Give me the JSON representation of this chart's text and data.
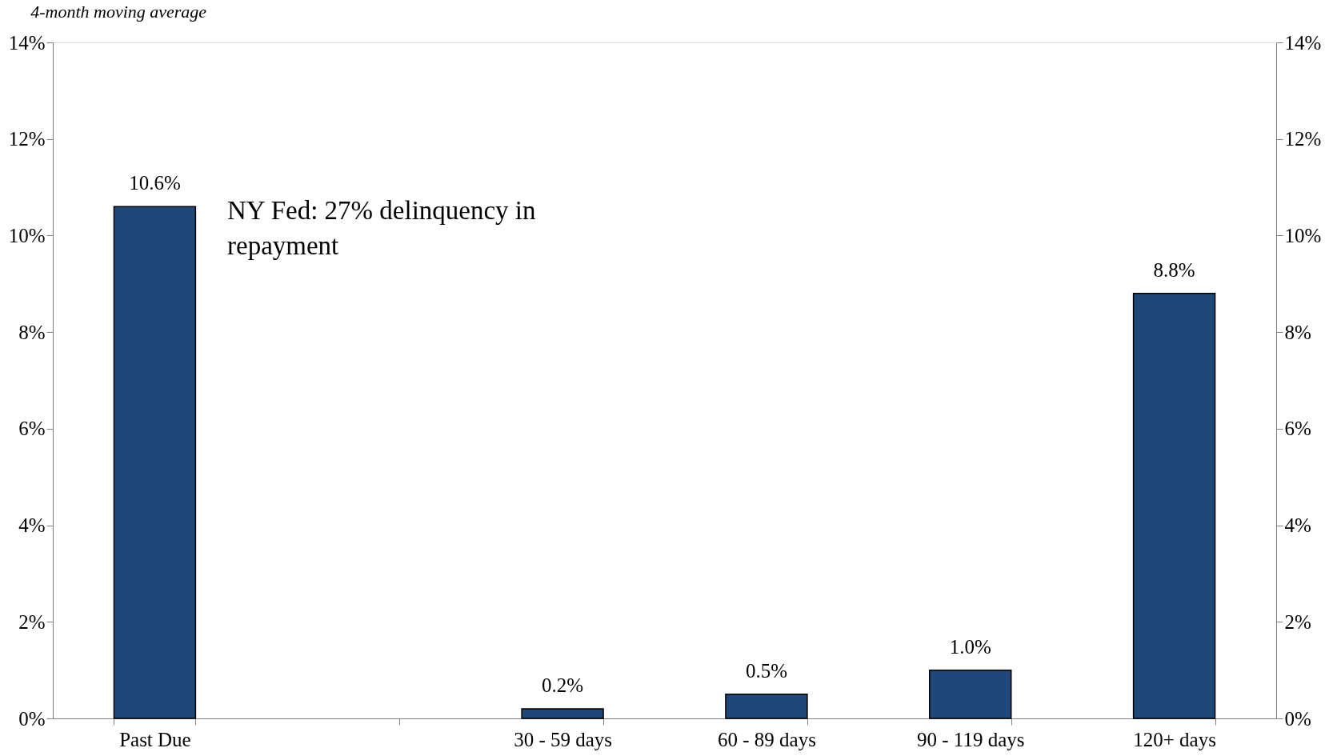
{
  "chart_data": {
    "type": "bar",
    "subtitle": "4-month moving average",
    "categories": [
      "Past Due",
      null,
      "30 - 59 days",
      "60 - 89 days",
      "90 - 119 days",
      "120+ days"
    ],
    "values": [
      10.6,
      null,
      0.2,
      0.5,
      1.0,
      8.8
    ],
    "value_labels": [
      "10.6%",
      null,
      "0.2%",
      "0.5%",
      "1.0%",
      "8.8%"
    ],
    "color": "#1f4778",
    "ylim": [
      0,
      14
    ],
    "yticks": [
      {
        "value": 0,
        "label": "0%"
      },
      {
        "value": 2,
        "label": "2%"
      },
      {
        "value": 4,
        "label": "4%"
      },
      {
        "value": 6,
        "label": "6%"
      },
      {
        "value": 8,
        "label": "8%"
      },
      {
        "value": 10,
        "label": "10%"
      },
      {
        "value": 12,
        "label": "12%"
      },
      {
        "value": 14,
        "label": "14%"
      }
    ],
    "y2lim": [
      0,
      14
    ],
    "y2ticks": [
      {
        "value": 0,
        "label": "0%"
      },
      {
        "value": 2,
        "label": "2%"
      },
      {
        "value": 4,
        "label": "4%"
      },
      {
        "value": 6,
        "label": "6%"
      },
      {
        "value": 8,
        "label": "8%"
      },
      {
        "value": 10,
        "label": "10%"
      },
      {
        "value": 12,
        "label": "12%"
      },
      {
        "value": 14,
        "label": "14%"
      }
    ],
    "annotations": [
      "NY Fed: 27% delinquency in repayment"
    ],
    "grid": false
  }
}
